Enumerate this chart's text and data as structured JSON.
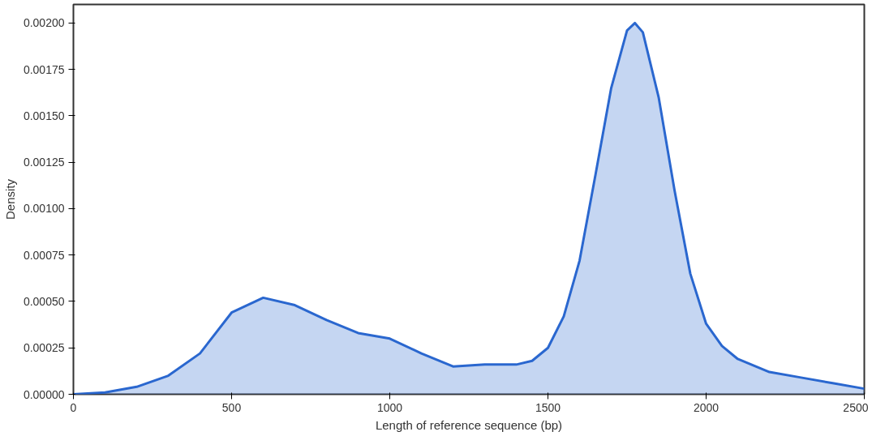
{
  "chart_data": {
    "type": "area",
    "xlabel": "Length of reference sequence (bp)",
    "ylabel": "Density",
    "x": [
      0,
      100,
      200,
      300,
      400,
      500,
      600,
      700,
      800,
      900,
      1000,
      1100,
      1200,
      1300,
      1400,
      1450,
      1500,
      1550,
      1600,
      1650,
      1700,
      1750,
      1775,
      1800,
      1850,
      1900,
      1950,
      2000,
      2050,
      2100,
      2200,
      2300,
      2400,
      2500
    ],
    "series": [
      {
        "color": "#2a67cf",
        "values": [
          0,
          1e-05,
          4e-05,
          0.0001,
          0.00022,
          0.00044,
          0.00052,
          0.00048,
          0.0004,
          0.00033,
          0.0003,
          0.00022,
          0.00015,
          0.00016,
          0.00016,
          0.00018,
          0.00025,
          0.00042,
          0.00072,
          0.00118,
          0.00165,
          0.00196,
          0.002,
          0.00195,
          0.0016,
          0.0011,
          0.00065,
          0.00038,
          0.00026,
          0.00019,
          0.00012,
          9e-05,
          6e-05,
          3e-05
        ]
      }
    ],
    "xlim": [
      0,
      2500
    ],
    "xticks": [
      0,
      500,
      1000,
      1500,
      2000,
      2500
    ],
    "ylim": [
      0,
      0.0021
    ],
    "yticks": [
      {
        "value": 0,
        "label": "0.00000"
      },
      {
        "value": 0.00025,
        "label": "0.00025"
      },
      {
        "value": 0.0005,
        "label": "0.00050"
      },
      {
        "value": 0.00075,
        "label": "0.00075"
      },
      {
        "value": 0.001,
        "label": "0.00100"
      },
      {
        "value": 0.00125,
        "label": "0.00125"
      },
      {
        "value": 0.0015,
        "label": "0.00150"
      },
      {
        "value": 0.00175,
        "label": "0.00175"
      },
      {
        "value": 0.002,
        "label": "0.00200"
      }
    ],
    "grid": false
  }
}
